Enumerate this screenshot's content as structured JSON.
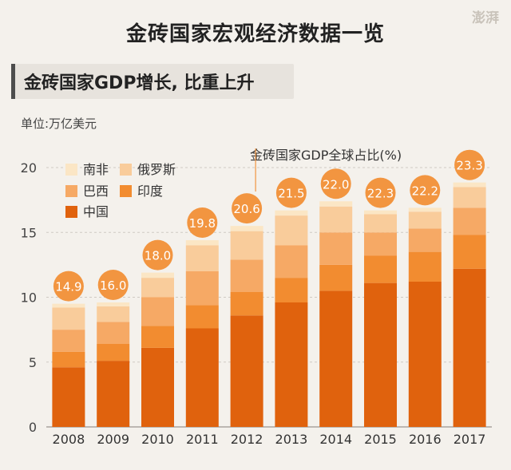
{
  "header": {
    "title": "金砖国家宏观经济数据一览",
    "watermark": "澎湃"
  },
  "subtitle": "金砖国家GDP增长, 比重上升",
  "unit": "单位:万亿美元",
  "share_label": "金砖国家GDP全球占比(%)",
  "colors": {
    "中国": "#e0620d",
    "印度": "#f28c30",
    "巴西": "#f6a965",
    "俄罗斯": "#f9cc9b",
    "南非": "#fbe6c5",
    "bubble": "#f29540"
  },
  "chart_data": {
    "type": "bar",
    "stacked": true,
    "categories": [
      "2008",
      "2009",
      "2010",
      "2011",
      "2012",
      "2013",
      "2014",
      "2015",
      "2016",
      "2017"
    ],
    "ylim": [
      0,
      20
    ],
    "yticks": [
      0,
      5,
      10,
      15,
      20
    ],
    "series": [
      {
        "name": "中国",
        "values": [
          4.6,
          5.1,
          6.1,
          7.6,
          8.6,
          9.6,
          10.5,
          11.1,
          11.2,
          12.2
        ]
      },
      {
        "name": "印度",
        "values": [
          1.2,
          1.3,
          1.7,
          1.8,
          1.8,
          1.9,
          2.0,
          2.1,
          2.3,
          2.6
        ]
      },
      {
        "name": "巴西",
        "values": [
          1.7,
          1.7,
          2.2,
          2.6,
          2.5,
          2.5,
          2.5,
          1.8,
          1.8,
          2.1
        ]
      },
      {
        "name": "俄罗斯",
        "values": [
          1.7,
          1.2,
          1.5,
          2.0,
          2.2,
          2.3,
          2.0,
          1.4,
          1.3,
          1.6
        ]
      },
      {
        "name": "南非",
        "values": [
          0.3,
          0.3,
          0.4,
          0.4,
          0.4,
          0.4,
          0.4,
          0.3,
          0.3,
          0.35
        ]
      }
    ],
    "share_of_world": [
      14.9,
      16.0,
      18.0,
      19.8,
      20.6,
      21.5,
      22.0,
      22.3,
      22.2,
      23.3
    ],
    "legend": [
      [
        "南非",
        "俄罗斯"
      ],
      [
        "巴西",
        "印度"
      ],
      [
        "中国"
      ]
    ]
  }
}
